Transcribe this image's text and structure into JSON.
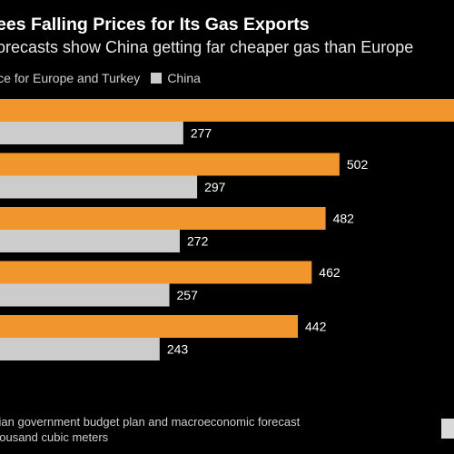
{
  "title": "ees Falling Prices for Its Gas Exports",
  "subtitle": "orecasts show China getting far cheaper gas than Europe",
  "legend": [
    {
      "label": "ice for Europe and Turkey",
      "color": "#f0962c"
    },
    {
      "label": "China",
      "color": "#cccccc"
    }
  ],
  "source_line1": "sian government budget plan and macroeconomic forecast",
  "source_line2": "housand cubic meters",
  "chart_data": {
    "type": "bar",
    "orientation": "horizontal",
    "xlim": [
      0,
      680
    ],
    "groups": [
      {
        "category": "",
        "values": [
          680,
          277
        ],
        "labels": [
          "",
          "277"
        ]
      },
      {
        "category": "",
        "values": [
          502,
          297
        ],
        "labels": [
          "502",
          "297"
        ]
      },
      {
        "category": "",
        "values": [
          482,
          272
        ],
        "labels": [
          "482",
          "272"
        ]
      },
      {
        "category": "",
        "values": [
          462,
          257
        ],
        "labels": [
          "462",
          "257"
        ]
      },
      {
        "category": "",
        "values": [
          442,
          243
        ],
        "labels": [
          "442",
          "243"
        ]
      }
    ],
    "series": [
      {
        "name": "ice for Europe and Turkey",
        "color": "#f0962c"
      },
      {
        "name": "China",
        "color": "#cccccc"
      }
    ]
  }
}
